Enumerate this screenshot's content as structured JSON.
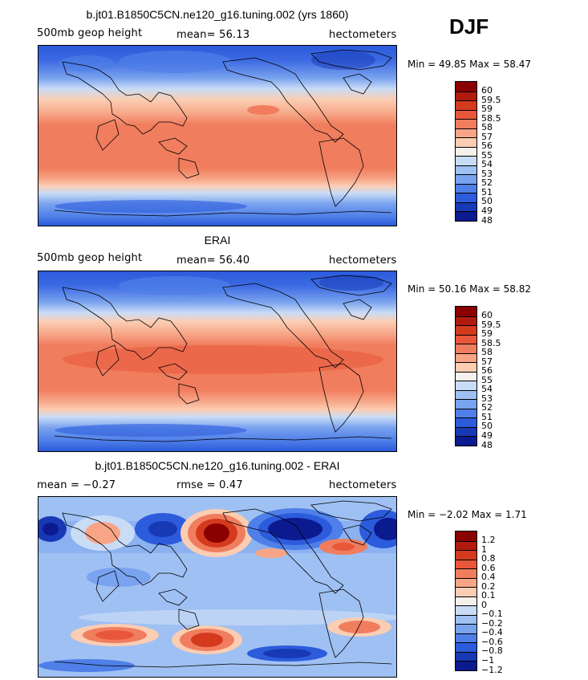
{
  "season": "DJF",
  "panels": [
    {
      "title": "b.jt01.B1850C5CN.ne120_g16.tuning.002 (yrs 1860)",
      "left_label": "500mb geop height",
      "mid_label": "mean=  56.13",
      "right_label": "hectometers",
      "minmax": "Min =  49.85 Max =  58.47",
      "colorbar": {
        "labels": [
          "60",
          "59.5",
          "59",
          "58.5",
          "58",
          "57",
          "56",
          "55",
          "54",
          "53",
          "52",
          "51",
          "50",
          "49",
          "48"
        ],
        "colors": [
          "#8b0000",
          "#b21a0e",
          "#d43a1d",
          "#e9573a",
          "#f07d5e",
          "#f7a586",
          "#fbcdb3",
          "#f4f0ec",
          "#c9dcf6",
          "#9fc0f3",
          "#79a2ef",
          "#4f7fe8",
          "#2c5bdc",
          "#1839b5",
          "#0b1a8f"
        ]
      }
    },
    {
      "title": "ERAI",
      "left_label": "500mb geop height",
      "mid_label": "mean=  56.40",
      "right_label": "hectometers",
      "minmax": "Min =  50.16 Max =  58.82",
      "colorbar": {
        "labels": [
          "60",
          "59.5",
          "59",
          "58.5",
          "58",
          "57",
          "56",
          "55",
          "54",
          "53",
          "52",
          "51",
          "50",
          "49",
          "48"
        ],
        "colors": [
          "#8b0000",
          "#b21a0e",
          "#d43a1d",
          "#e9573a",
          "#f07d5e",
          "#f7a586",
          "#fbcdb3",
          "#f4f0ec",
          "#c9dcf6",
          "#9fc0f3",
          "#79a2ef",
          "#4f7fe8",
          "#2c5bdc",
          "#1839b5",
          "#0b1a8f"
        ]
      }
    },
    {
      "title": "b.jt01.B1850C5CN.ne120_g16.tuning.002 - ERAI",
      "left_label": "mean =  −0.27",
      "mid_label": "rmse =   0.47",
      "right_label": "hectometers",
      "minmax": "Min =  −2.02 Max =   1.71",
      "colorbar": {
        "labels": [
          "1.2",
          "1",
          "0.8",
          "0.6",
          "0.4",
          "0.2",
          "0.1",
          "0",
          "−0.1",
          "−0.2",
          "−0.4",
          "−0.6",
          "−0.8",
          "−1",
          "−1.2"
        ],
        "colors": [
          "#8b0000",
          "#b21a0e",
          "#d43a1d",
          "#e9573a",
          "#f07d5e",
          "#f7a586",
          "#fbcdb3",
          "#f4f0ec",
          "#c9dcf6",
          "#9fc0f3",
          "#79a2ef",
          "#4f7fe8",
          "#2c5bdc",
          "#1839b5",
          "#0b1a8f"
        ]
      }
    }
  ]
}
